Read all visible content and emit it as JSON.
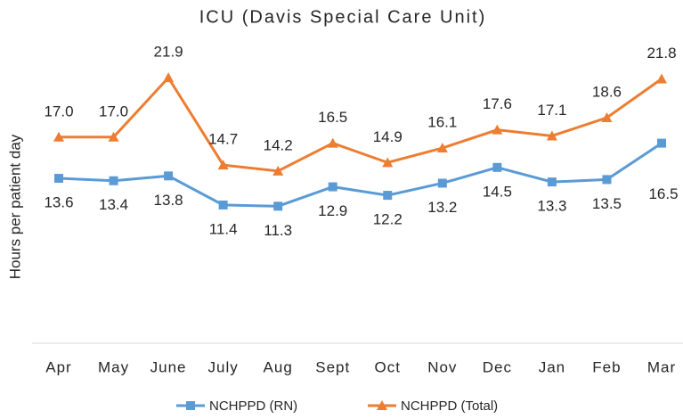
{
  "chart_data": {
    "type": "line",
    "title": "ICU (Davis Special Care Unit)",
    "y_label": "Hours per patient day",
    "categories": [
      "Apr",
      "May",
      "June",
      "July",
      "Aug",
      "Sept",
      "Oct",
      "Nov",
      "Dec",
      "Jan",
      "Feb",
      "Mar"
    ],
    "ylim": [
      0,
      24
    ],
    "legend": "bottom",
    "series": [
      {
        "name": "NCHPPD (RN)",
        "color": "#5b9bd5",
        "marker": "square",
        "values": [
          13.6,
          13.4,
          13.8,
          11.4,
          11.3,
          12.9,
          12.2,
          13.2,
          14.5,
          13.3,
          13.5,
          16.5
        ],
        "value_labels": [
          "13.6",
          "13.4",
          "13.8",
          "11.4",
          "11.3",
          "12.9",
          "12.2",
          "13.2",
          "14.5",
          "13.3",
          "13.5",
          "16.5"
        ]
      },
      {
        "name": "NCHPPD (Total)",
        "color": "#ed7d31",
        "marker": "triangle",
        "values": [
          17.0,
          17.0,
          21.9,
          14.7,
          14.2,
          16.5,
          14.9,
          16.1,
          17.6,
          17.1,
          18.6,
          21.8
        ],
        "value_labels": [
          "17.0",
          "17.0",
          "21.9",
          "14.7",
          "14.2",
          "16.5",
          "14.9",
          "16.1",
          "17.6",
          "17.1",
          "18.6",
          "21.8"
        ]
      }
    ]
  }
}
